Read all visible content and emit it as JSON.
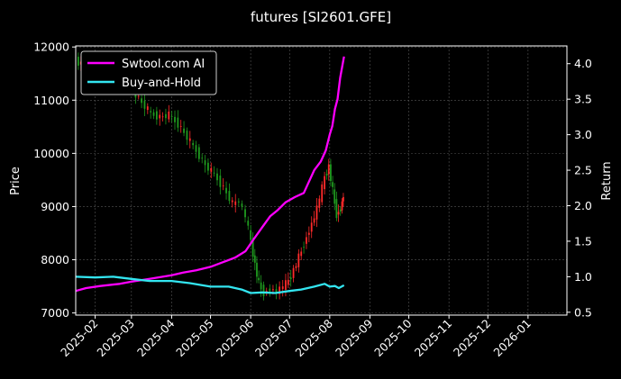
{
  "chart_data": {
    "type": "line",
    "title": "futures [SI2601.GFE]",
    "xlabel": "",
    "ylabel_left": "Price",
    "ylabel_right": "Return",
    "x_range": [
      "2025-01-17",
      "2026-01-31"
    ],
    "y_left_range": [
      6960,
      12020
    ],
    "y_right_range": [
      0.46,
      4.25
    ],
    "x_ticks": [
      "2025-02",
      "2025-03",
      "2025-04",
      "2025-05",
      "2025-06",
      "2025-07",
      "2025-08",
      "2025-09",
      "2025-10",
      "2025-11",
      "2025-12",
      "2026-01"
    ],
    "y_left_ticks": [
      7000,
      8000,
      9000,
      10000,
      11000,
      12000
    ],
    "y_right_ticks": [
      0.5,
      1.0,
      1.5,
      2.0,
      2.5,
      3.0,
      3.5,
      4.0
    ],
    "grid": true,
    "legend_position": "top-left",
    "colors": {
      "background": "#000000",
      "up_candle": "#ff2a2a",
      "down_candle": "#1f9a1f",
      "grid": "#555555",
      "text": "#ffffff"
    },
    "series": [
      {
        "name": "Swtool.com AI",
        "color": "#ff00ff",
        "axis": "right",
        "points": [
          [
            "2025-01-17",
            0.8
          ],
          [
            "2025-01-25",
            0.84
          ],
          [
            "2025-02-05",
            0.87
          ],
          [
            "2025-02-20",
            0.9
          ],
          [
            "2025-03-01",
            0.93
          ],
          [
            "2025-03-15",
            0.97
          ],
          [
            "2025-04-01",
            1.02
          ],
          [
            "2025-04-10",
            1.06
          ],
          [
            "2025-04-20",
            1.09
          ],
          [
            "2025-05-01",
            1.14
          ],
          [
            "2025-05-10",
            1.2
          ],
          [
            "2025-05-20",
            1.27
          ],
          [
            "2025-05-28",
            1.36
          ],
          [
            "2025-06-03",
            1.52
          ],
          [
            "2025-06-10",
            1.7
          ],
          [
            "2025-06-16",
            1.85
          ],
          [
            "2025-06-22",
            1.94
          ],
          [
            "2025-06-28",
            2.05
          ],
          [
            "2025-07-05",
            2.12
          ],
          [
            "2025-07-12",
            2.18
          ],
          [
            "2025-07-15",
            2.3
          ],
          [
            "2025-07-20",
            2.5
          ],
          [
            "2025-07-25",
            2.62
          ],
          [
            "2025-07-29",
            2.78
          ],
          [
            "2025-08-01",
            3.0
          ],
          [
            "2025-08-03",
            3.12
          ],
          [
            "2025-08-05",
            3.36
          ],
          [
            "2025-08-07",
            3.5
          ],
          [
            "2025-08-09",
            3.8
          ],
          [
            "2025-08-12",
            4.1
          ]
        ]
      },
      {
        "name": "Buy-and-Hold",
        "color": "#33e5f0",
        "axis": "right",
        "points": [
          [
            "2025-01-17",
            1.0
          ],
          [
            "2025-02-01",
            0.99
          ],
          [
            "2025-02-15",
            1.0
          ],
          [
            "2025-03-01",
            0.97
          ],
          [
            "2025-03-15",
            0.94
          ],
          [
            "2025-04-01",
            0.94
          ],
          [
            "2025-04-15",
            0.91
          ],
          [
            "2025-05-01",
            0.86
          ],
          [
            "2025-05-15",
            0.86
          ],
          [
            "2025-05-25",
            0.82
          ],
          [
            "2025-06-01",
            0.77
          ],
          [
            "2025-06-10",
            0.78
          ],
          [
            "2025-06-20",
            0.77
          ],
          [
            "2025-07-01",
            0.8
          ],
          [
            "2025-07-10",
            0.82
          ],
          [
            "2025-07-20",
            0.86
          ],
          [
            "2025-07-28",
            0.9
          ],
          [
            "2025-08-01",
            0.86
          ],
          [
            "2025-08-05",
            0.87
          ],
          [
            "2025-08-08",
            0.84
          ],
          [
            "2025-08-12",
            0.88
          ]
        ]
      },
      {
        "name": "",
        "kind": "candles",
        "axis": "left",
        "points": [
          [
            "2025-01-18",
            11750
          ],
          [
            "2025-01-22",
            11680
          ],
          [
            "2025-01-26",
            11620
          ],
          [
            "2025-02-01",
            11650
          ],
          [
            "2025-02-08",
            11550
          ],
          [
            "2025-02-16",
            11450
          ],
          [
            "2025-02-24",
            11320
          ],
          [
            "2025-03-03",
            11200
          ],
          [
            "2025-03-10",
            10950
          ],
          [
            "2025-03-17",
            10750
          ],
          [
            "2025-03-24",
            10680
          ],
          [
            "2025-03-31",
            10720
          ],
          [
            "2025-04-07",
            10550
          ],
          [
            "2025-04-14",
            10300
          ],
          [
            "2025-04-21",
            10050
          ],
          [
            "2025-04-28",
            9780
          ],
          [
            "2025-05-05",
            9600
          ],
          [
            "2025-05-12",
            9350
          ],
          [
            "2025-05-19",
            9050
          ],
          [
            "2025-05-24",
            9100
          ],
          [
            "2025-05-29",
            8800
          ],
          [
            "2025-06-02",
            8350
          ],
          [
            "2025-06-05",
            7900
          ],
          [
            "2025-06-08",
            7550
          ],
          [
            "2025-06-12",
            7380
          ],
          [
            "2025-06-17",
            7450
          ],
          [
            "2025-06-22",
            7400
          ],
          [
            "2025-06-27",
            7500
          ],
          [
            "2025-07-01",
            7600
          ],
          [
            "2025-07-05",
            7800
          ],
          [
            "2025-07-09",
            8050
          ],
          [
            "2025-07-13",
            8300
          ],
          [
            "2025-07-17",
            8550
          ],
          [
            "2025-07-21",
            8800
          ],
          [
            "2025-07-25",
            9150
          ],
          [
            "2025-07-29",
            9550
          ],
          [
            "2025-08-01",
            9750
          ],
          [
            "2025-08-04",
            9300
          ],
          [
            "2025-08-07",
            8850
          ],
          [
            "2025-08-10",
            8950
          ],
          [
            "2025-08-12",
            9200
          ]
        ]
      }
    ]
  }
}
